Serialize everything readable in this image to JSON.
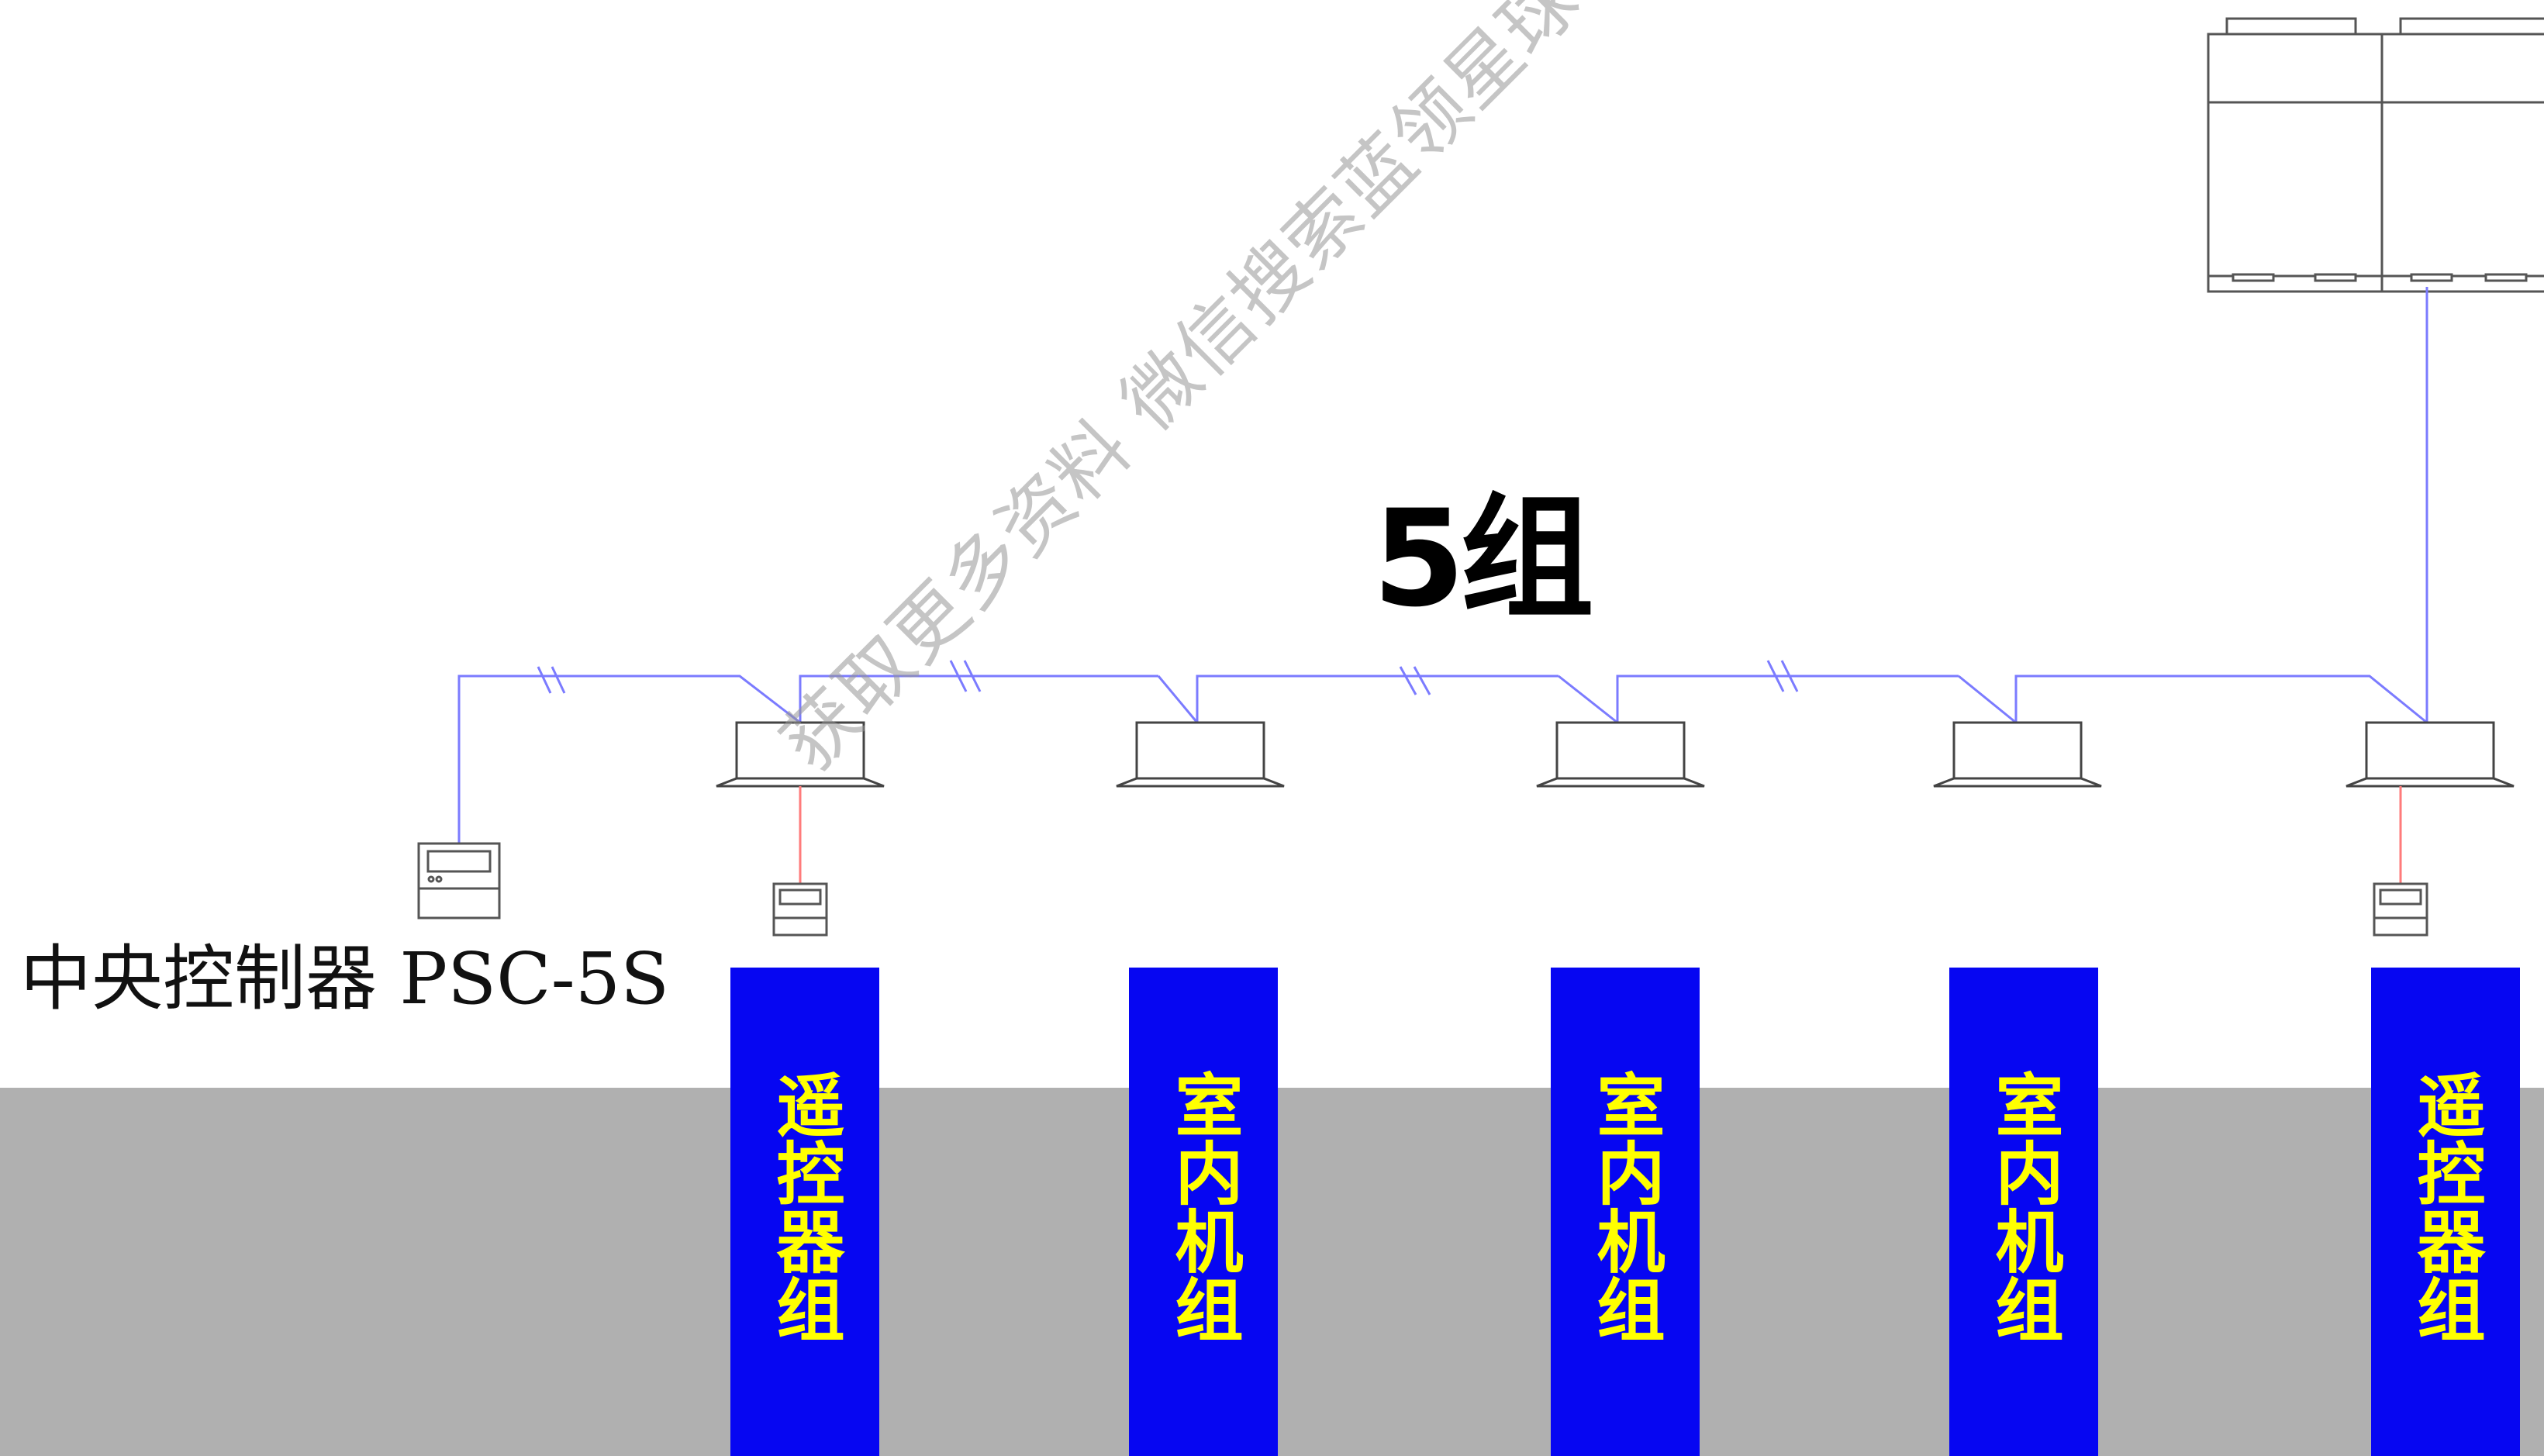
{
  "title": "5组",
  "controller_label": "中央控制器 PSC-5S",
  "columns": [
    {
      "label": "遥控器组"
    },
    {
      "label": "室内机组"
    },
    {
      "label": "室内机组"
    },
    {
      "label": "室内机组"
    },
    {
      "label": "遥控器组"
    }
  ],
  "watermark": "获取更多资料 微信搜索蓝领星球",
  "colors": {
    "column_fill": "#0606f2",
    "column_text": "#ffff00",
    "floor": "#b0b0b0",
    "pipe_line": "#7b7bff",
    "remote_wire": "#ff7b7b"
  }
}
